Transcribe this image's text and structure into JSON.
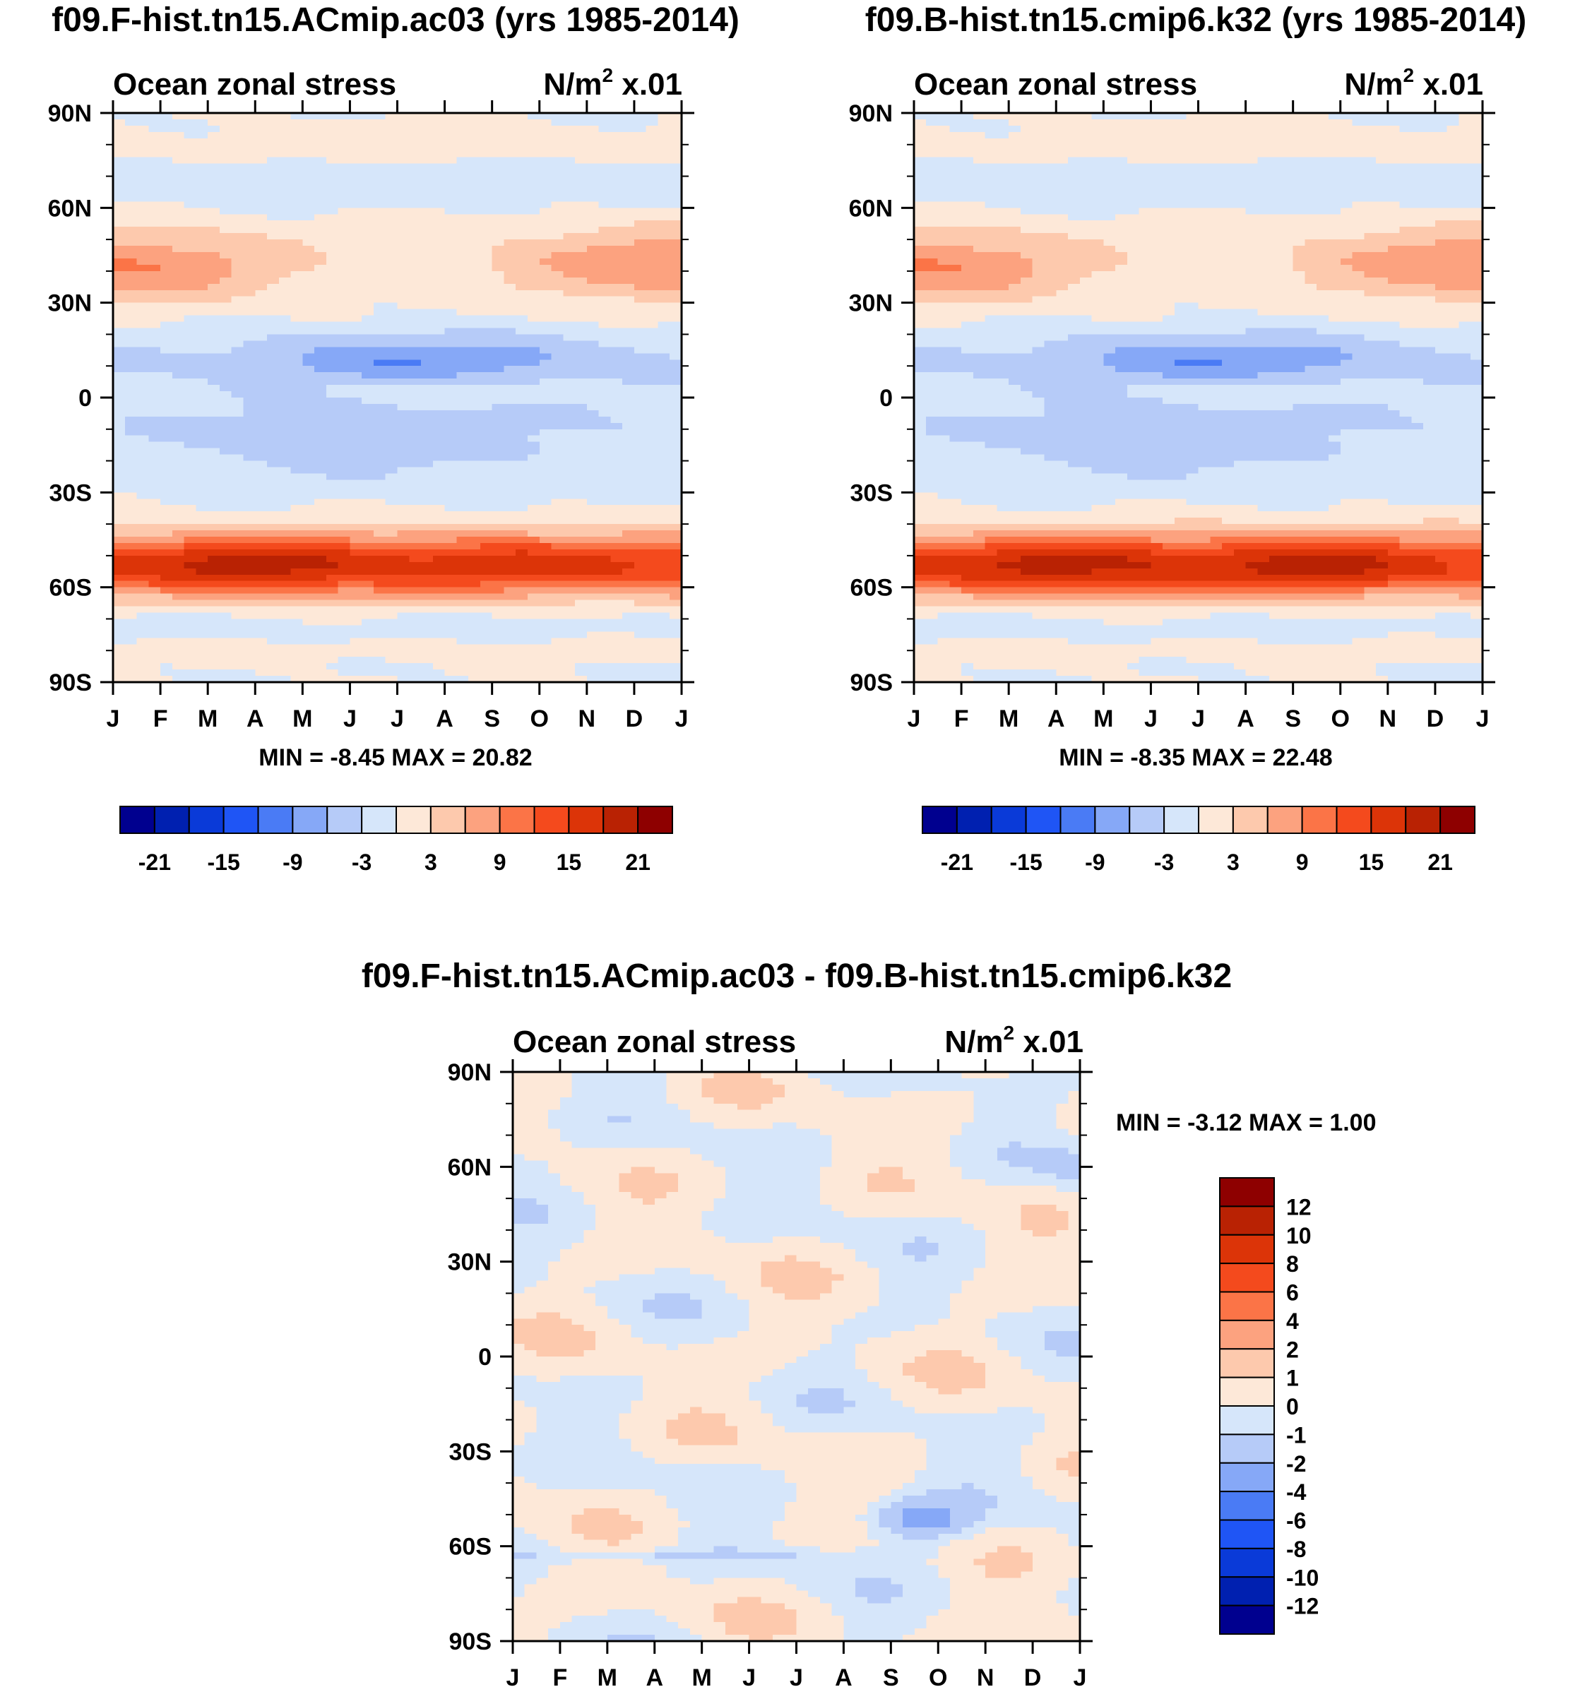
{
  "colors": {
    "full": [
      "#00008f",
      "#0020b0",
      "#0a3ad8",
      "#1f55f5",
      "#4a7bf5",
      "#86a8f7",
      "#b6cbf8",
      "#d6e6fa",
      "#fde8d8",
      "#fdc9ad",
      "#fca27f",
      "#fb7447",
      "#f44a1d",
      "#dc3408",
      "#b92203",
      "#8e0000"
    ],
    "diff": [
      "#00008f",
      "#0020b0",
      "#0a3ad8",
      "#1f55f5",
      "#4a7bf5",
      "#86a8f7",
      "#b6cbf8",
      "#d6e6fa",
      "#fde8d8",
      "#fdc9ad",
      "#fca27f",
      "#fb7447",
      "#f44a1d",
      "#dc3408",
      "#b92203",
      "#8e0000"
    ]
  },
  "chart_data": [
    {
      "type": "heatmap",
      "id": "model_a",
      "title": "f09.F-hist.tn15.ACmip.ac03 (yrs 1985-2014)",
      "left_title": "Ocean zonal stress",
      "right_title_base": "N/m",
      "right_title_sup": "2",
      "right_title_tail": " x.01",
      "x_ticks": [
        "J",
        "F",
        "M",
        "A",
        "M",
        "J",
        "J",
        "A",
        "S",
        "O",
        "N",
        "D",
        "J"
      ],
      "y_ticks": [
        "90N",
        "60N",
        "30N",
        "0",
        "30S",
        "60S",
        "90S"
      ],
      "ylim": [
        -90,
        90
      ],
      "stats_text": "MIN =  -8.45 MAX =  20.82",
      "min": -8.45,
      "max": 20.82,
      "levels": [
        -21,
        -18,
        -15,
        -12,
        -9,
        -6,
        -3,
        0,
        3,
        6,
        9,
        12,
        15,
        18,
        21
      ],
      "colorbar_labels": [
        "-21",
        "-15",
        "-9",
        "-3",
        "3",
        "9",
        "15",
        "21"
      ],
      "amp": [
        1.9,
        1.0
      ]
    },
    {
      "type": "heatmap",
      "id": "model_b",
      "title": "f09.B-hist.tn15.cmip6.k32 (yrs 1985-2014)",
      "left_title": "Ocean zonal stress",
      "right_title_base": "N/m",
      "right_title_sup": "2",
      "right_title_tail": " x.01",
      "x_ticks": [
        "J",
        "F",
        "M",
        "A",
        "M",
        "J",
        "J",
        "A",
        "S",
        "O",
        "N",
        "D",
        "J"
      ],
      "y_ticks": [
        "90N",
        "60N",
        "30N",
        "0",
        "30S",
        "60S",
        "90S"
      ],
      "ylim": [
        -90,
        90
      ],
      "stats_text": "MIN =  -8.35 MAX =  22.48",
      "min": -8.35,
      "max": 22.48,
      "levels": [
        -21,
        -18,
        -15,
        -12,
        -9,
        -6,
        -3,
        0,
        3,
        6,
        9,
        12,
        15,
        18,
        21
      ],
      "colorbar_labels": [
        "-21",
        "-15",
        "-9",
        "-3",
        "3",
        "9",
        "15",
        "21"
      ],
      "amp": [
        1.6,
        2.4
      ]
    },
    {
      "type": "heatmap",
      "id": "difference",
      "title": "f09.F-hist.tn15.ACmip.ac03 - f09.B-hist.tn15.cmip6.k32",
      "left_title": "Ocean zonal stress",
      "right_title_base": "N/m",
      "right_title_sup": "2",
      "right_title_tail": " x.01",
      "x_ticks": [
        "J",
        "F",
        "M",
        "A",
        "M",
        "J",
        "J",
        "A",
        "S",
        "O",
        "N",
        "D",
        "J"
      ],
      "y_ticks": [
        "90N",
        "60N",
        "30N",
        "0",
        "30S",
        "60S",
        "90S"
      ],
      "ylim": [
        -90,
        90
      ],
      "stats_text": "MIN =  -3.12 MAX =   1.00",
      "min": -3.12,
      "max": 1.0,
      "levels": [
        -12,
        -10,
        -8,
        -6,
        -4,
        -2,
        -1,
        0,
        1,
        2,
        4,
        6,
        8,
        10,
        12
      ],
      "colorbar_labels": [
        "12",
        "10",
        "8",
        "6",
        "4",
        "2",
        "1",
        "0",
        "-1",
        "-2",
        "-4",
        "-6",
        "-8",
        "-10",
        "-12"
      ]
    }
  ]
}
